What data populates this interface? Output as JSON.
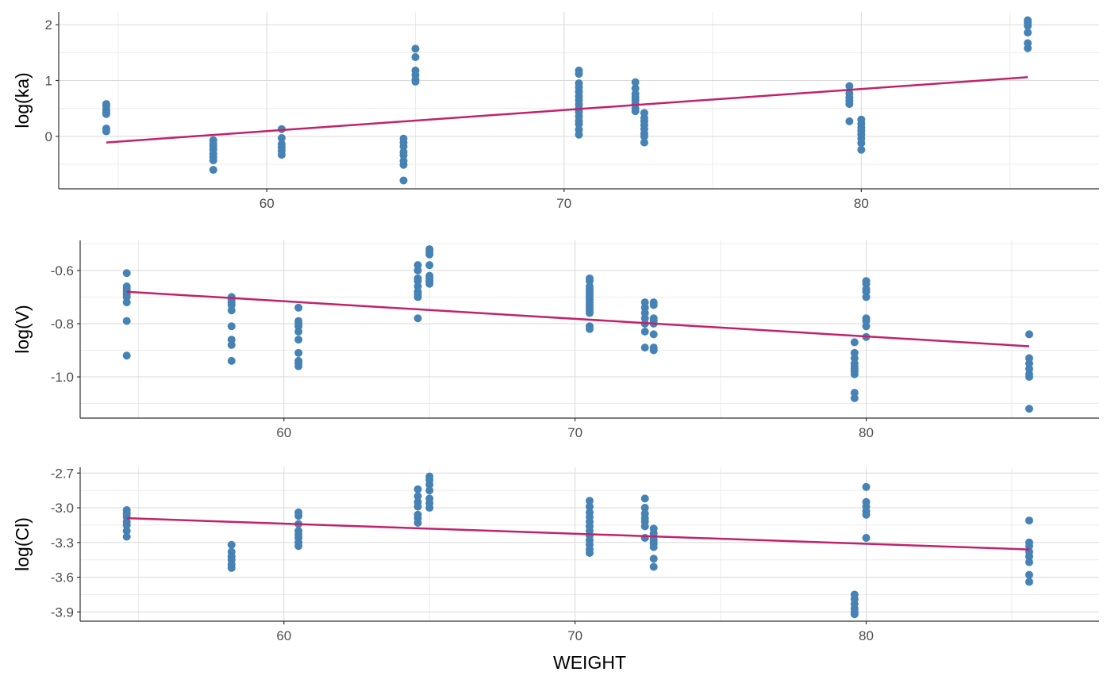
{
  "chart_data": [
    {
      "type": "scatter",
      "ylabel": "log(ka)",
      "xlabel": "",
      "xlim": [
        53,
        88
      ],
      "ylim": [
        -0.94,
        2.23
      ],
      "xticks": [
        60,
        70,
        80
      ],
      "yticks": [
        2,
        1,
        0
      ],
      "ytick_labels": [
        "2",
        "1",
        "0"
      ],
      "xtick_labels": [
        "60",
        "70",
        "80"
      ],
      "grid": true,
      "point_color": "#4682B4",
      "line_color": "#C2226A",
      "points": [
        [
          54.6,
          [
            0.58,
            0.54,
            0.48,
            0.44,
            0.4,
            0.14,
            0.09
          ]
        ],
        [
          58.2,
          [
            -0.07,
            -0.13,
            -0.18,
            -0.24,
            -0.31,
            -0.37,
            -0.43,
            -0.6
          ]
        ],
        [
          60.5,
          [
            0.13,
            -0.03,
            -0.14,
            -0.2,
            -0.26,
            -0.33
          ]
        ],
        [
          64.6,
          [
            -0.04,
            -0.11,
            -0.18,
            -0.28,
            -0.34,
            -0.44,
            -0.51,
            -0.79
          ]
        ],
        [
          65.0,
          [
            1.57,
            1.42,
            1.18,
            1.1,
            1.02,
            0.98
          ]
        ],
        [
          70.5,
          [
            1.18,
            1.12,
            0.95,
            0.88,
            0.8,
            0.72,
            0.65,
            0.57,
            0.5,
            0.44,
            0.36,
            0.28,
            0.22,
            0.12,
            0.03
          ]
        ],
        [
          72.4,
          [
            0.97,
            0.86,
            0.76,
            0.7,
            0.65,
            0.58,
            0.5,
            0.45
          ]
        ],
        [
          72.7,
          [
            0.42,
            0.33,
            0.27,
            0.2,
            0.13,
            0.05,
            0.0,
            -0.11
          ]
        ],
        [
          79.6,
          [
            0.9,
            0.77,
            0.7,
            0.64,
            0.58,
            0.27
          ]
        ],
        [
          80.0,
          [
            0.3,
            0.23,
            0.16,
            0.1,
            0.03,
            -0.04,
            -0.12,
            -0.24
          ]
        ],
        [
          85.6,
          [
            2.08,
            2.04,
            1.98,
            1.86,
            1.67,
            1.58
          ]
        ]
      ],
      "fit_line": [
        [
          54.6,
          -0.11
        ],
        [
          85.6,
          1.06
        ]
      ]
    },
    {
      "type": "scatter",
      "ylabel": "log(V)",
      "xlabel": "",
      "xlim": [
        53,
        88
      ],
      "ylim": [
        -1.155,
        -0.487
      ],
      "xticks": [
        60,
        70,
        80
      ],
      "yticks": [
        -0.6,
        -0.8,
        -1.0
      ],
      "ytick_labels": [
        "-0.6",
        "-0.8",
        "-1.0"
      ],
      "xtick_labels": [
        "60",
        "70",
        "80"
      ],
      "grid": true,
      "point_color": "#4682B4",
      "line_color": "#C2226A",
      "points": [
        [
          54.6,
          [
            -0.61,
            -0.66,
            -0.67,
            -0.68,
            -0.69,
            -0.7,
            -0.72,
            -0.79,
            -0.92
          ]
        ],
        [
          58.2,
          [
            -0.7,
            -0.71,
            -0.72,
            -0.73,
            -0.75,
            -0.81,
            -0.86,
            -0.88,
            -0.94
          ]
        ],
        [
          60.5,
          [
            -0.74,
            -0.79,
            -0.8,
            -0.81,
            -0.83,
            -0.86,
            -0.91,
            -0.94,
            -0.95,
            -0.96
          ]
        ],
        [
          64.6,
          [
            -0.58,
            -0.6,
            -0.63,
            -0.64,
            -0.66,
            -0.68,
            -0.69,
            -0.7,
            -0.78
          ]
        ],
        [
          65.0,
          [
            -0.52,
            -0.53,
            -0.54,
            -0.58,
            -0.62,
            -0.63,
            -0.64,
            -0.65
          ]
        ],
        [
          70.5,
          [
            -0.63,
            -0.64,
            -0.66,
            -0.67,
            -0.68,
            -0.69,
            -0.7,
            -0.71,
            -0.72,
            -0.73,
            -0.74,
            -0.75,
            -0.76,
            -0.81,
            -0.82
          ]
        ],
        [
          72.4,
          [
            -0.72,
            -0.74,
            -0.76,
            -0.78,
            -0.8,
            -0.83,
            -0.89
          ]
        ],
        [
          72.7,
          [
            -0.72,
            -0.73,
            -0.78,
            -0.79,
            -0.8,
            -0.84,
            -0.89,
            -0.9
          ]
        ],
        [
          79.6,
          [
            -0.87,
            -0.91,
            -0.93,
            -0.95,
            -0.96,
            -0.97,
            -0.98,
            -0.99,
            -1.06,
            -1.08
          ]
        ],
        [
          80.0,
          [
            -0.64,
            -0.65,
            -0.67,
            -0.68,
            -0.7,
            -0.78,
            -0.79,
            -0.81,
            -0.85
          ]
        ],
        [
          85.6,
          [
            -0.84,
            -0.93,
            -0.95,
            -0.97,
            -0.99,
            -1.0,
            -1.12
          ]
        ]
      ],
      "fit_line": [
        [
          54.6,
          -0.68
        ],
        [
          85.6,
          -0.885
        ]
      ]
    },
    {
      "type": "scatter",
      "ylabel": "log(Cl)",
      "xlabel": "WEIGHT",
      "xlim": [
        53,
        88
      ],
      "ylim": [
        -3.98,
        -2.65
      ],
      "xticks": [
        60,
        70,
        80
      ],
      "yticks": [
        -2.7,
        -3.0,
        -3.3,
        -3.6,
        -3.9
      ],
      "ytick_labels": [
        "-2.7",
        "-3.0",
        "-3.3",
        "-3.6",
        "-3.9"
      ],
      "xtick_labels": [
        "60",
        "70",
        "80"
      ],
      "grid": true,
      "point_color": "#4682B4",
      "line_color": "#C2226A",
      "points": [
        [
          54.6,
          [
            -3.02,
            -3.05,
            -3.08,
            -3.12,
            -3.15,
            -3.2,
            -3.25
          ]
        ],
        [
          58.2,
          [
            -3.32,
            -3.38,
            -3.42,
            -3.45,
            -3.49,
            -3.52
          ]
        ],
        [
          60.5,
          [
            -3.04,
            -3.07,
            -3.14,
            -3.2,
            -3.23,
            -3.26,
            -3.3,
            -3.33
          ]
        ],
        [
          64.6,
          [
            -2.84,
            -2.9,
            -2.95,
            -2.99,
            -3.06,
            -3.09,
            -3.13
          ]
        ],
        [
          65.0,
          [
            -2.73,
            -2.76,
            -2.8,
            -2.85,
            -2.92,
            -2.96,
            -3.0
          ]
        ],
        [
          70.5,
          [
            -2.94,
            -2.99,
            -3.04,
            -3.08,
            -3.12,
            -3.16,
            -3.2,
            -3.24,
            -3.28,
            -3.32,
            -3.36,
            -3.39
          ]
        ],
        [
          72.4,
          [
            -2.92,
            -3.0,
            -3.05,
            -3.09,
            -3.12,
            -3.16,
            -3.26
          ]
        ],
        [
          72.7,
          [
            -3.18,
            -3.22,
            -3.25,
            -3.28,
            -3.31,
            -3.34,
            -3.44,
            -3.51
          ]
        ],
        [
          79.6,
          [
            -3.75,
            -3.79,
            -3.83,
            -3.87,
            -3.9,
            -3.92
          ]
        ],
        [
          80.0,
          [
            -2.82,
            -2.95,
            -2.99,
            -3.03,
            -3.06,
            -3.26
          ]
        ],
        [
          85.6,
          [
            -3.11,
            -3.3,
            -3.33,
            -3.38,
            -3.42,
            -3.47,
            -3.58,
            -3.64
          ]
        ]
      ],
      "fit_line": [
        [
          54.6,
          -3.09
        ],
        [
          85.6,
          -3.36
        ]
      ]
    }
  ]
}
